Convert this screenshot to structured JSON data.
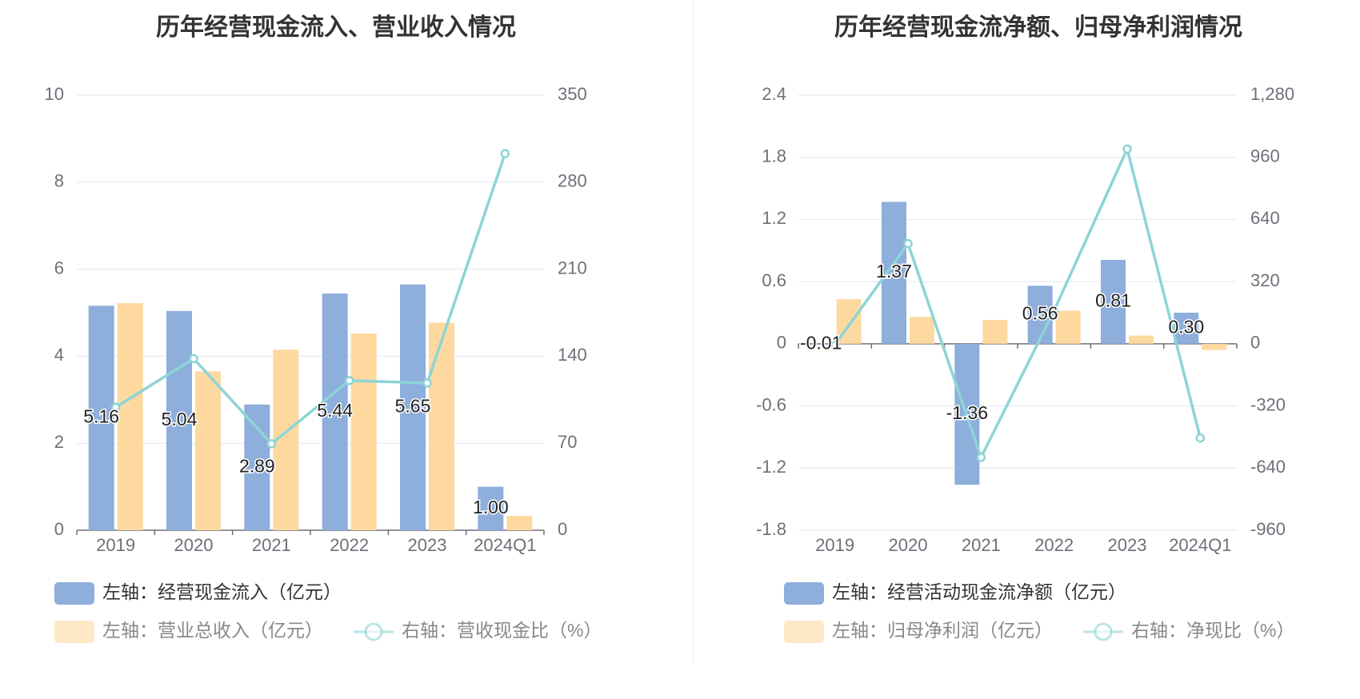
{
  "chart_data": [
    {
      "type": "bar",
      "title": "历年经营现金流入、营业收入情况",
      "categories": [
        "2019",
        "2020",
        "2021",
        "2022",
        "2023",
        "2024Q1"
      ],
      "y_left": {
        "ylim": [
          0,
          10
        ],
        "ticks": [
          "0",
          "2",
          "4",
          "6",
          "8",
          "10"
        ]
      },
      "y_right": {
        "ylim": [
          0,
          350
        ],
        "ticks": [
          "0",
          "70",
          "140",
          "210",
          "280",
          "350"
        ]
      },
      "grid": true,
      "legend_position": "bottom",
      "series": [
        {
          "name": "左轴：经营现金流入（亿元）",
          "type": "bar",
          "axis": "left",
          "color": "#8eaedc",
          "values": [
            5.16,
            5.04,
            2.89,
            5.44,
            5.65,
            1.0
          ],
          "labels": [
            "5.16",
            "5.04",
            "2.89",
            "5.44",
            "5.65",
            "1.00"
          ]
        },
        {
          "name": "左轴：营业总收入（亿元）",
          "type": "bar",
          "axis": "left",
          "color": "#fdd9a0",
          "values": [
            5.22,
            3.65,
            4.15,
            4.52,
            4.77,
            0.33
          ]
        },
        {
          "name": "右轴：营收现金比（%）",
          "type": "line",
          "axis": "right",
          "color": "#8dd4d6",
          "values": [
            98.9,
            138.1,
            69.6,
            120.4,
            118.4,
            303.0
          ]
        }
      ]
    },
    {
      "type": "bar",
      "title": "历年经营现金流净额、归母净利润情况",
      "categories": [
        "2019",
        "2020",
        "2021",
        "2022",
        "2023",
        "2024Q1"
      ],
      "y_left": {
        "ylim": [
          -1.8,
          2.4
        ],
        "ticks": [
          "-1.8",
          "-1.2",
          "-0.6",
          "0",
          "0.6",
          "1.2",
          "1.8",
          "2.4"
        ]
      },
      "y_right": {
        "ylim": [
          -960,
          1280
        ],
        "ticks": [
          "-960",
          "-640",
          "-320",
          "0",
          "320",
          "640",
          "960",
          "1,280"
        ]
      },
      "grid": true,
      "legend_position": "bottom",
      "series": [
        {
          "name": "左轴：经营活动现金流净额（亿元）",
          "type": "bar",
          "axis": "left",
          "color": "#8eaedc",
          "values": [
            -0.01,
            1.37,
            -1.36,
            0.56,
            0.81,
            0.3
          ],
          "labels": [
            "-0.01",
            "1.37",
            "-1.36",
            "0.56",
            "0.81",
            "0.30"
          ]
        },
        {
          "name": "左轴：归母净利润（亿元）",
          "type": "bar",
          "axis": "left",
          "color": "#fdd9a0",
          "values": [
            0.43,
            0.26,
            0.23,
            0.32,
            0.08,
            -0.06
          ]
        },
        {
          "name": "右轴：净现比（%）",
          "type": "line",
          "axis": "right",
          "color": "#8dd4d6",
          "values": [
            -5,
            516,
            -585,
            171,
            1003,
            -485
          ]
        }
      ]
    }
  ]
}
